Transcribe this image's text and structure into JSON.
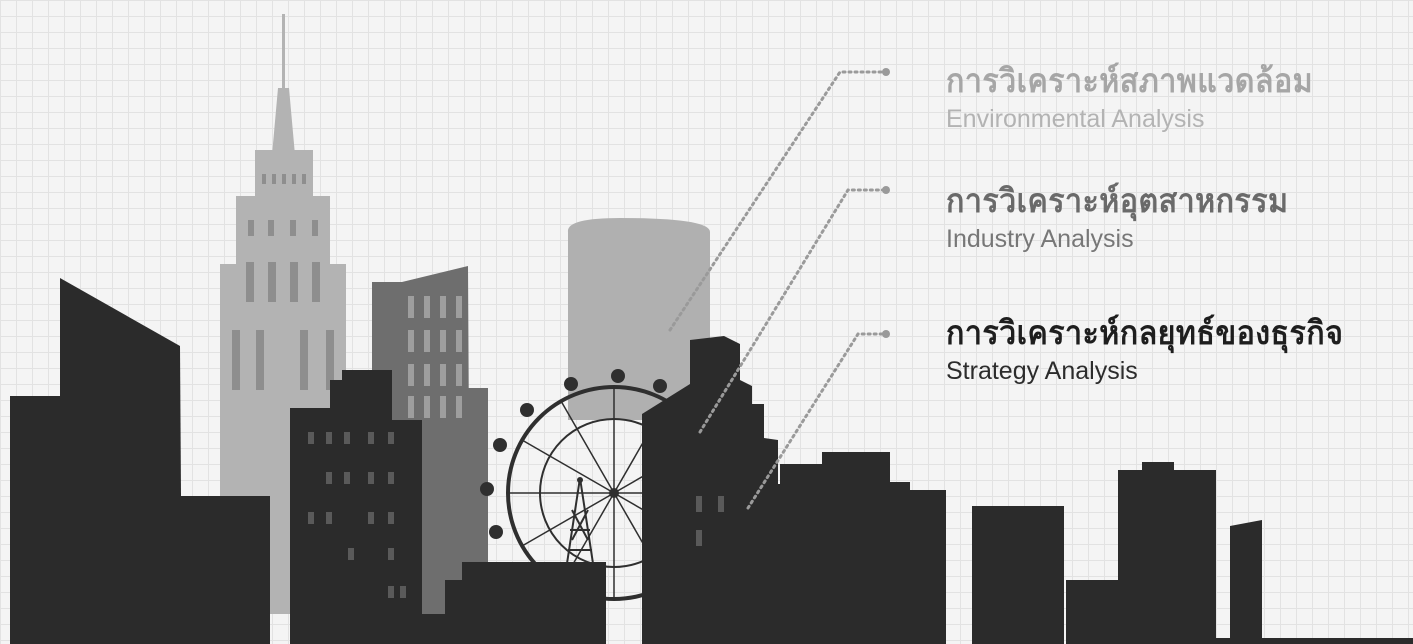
{
  "items": [
    {
      "thai": "การวิเคราะห์สภาพแวดล้อม",
      "english": "Environmental Analysis",
      "level": "light"
    },
    {
      "thai": "การวิเคราะห์อุตสาหกรรม",
      "english": "Industry Analysis",
      "level": "medium"
    },
    {
      "thai": "การวิเคราะห์กลยุทธ์ของธุรกิจ",
      "english": "Strategy Analysis",
      "level": "dark"
    }
  ],
  "colors": {
    "background": "#f4f4f4",
    "grid": "#e2e2e2",
    "tower_light": "#b0b0b0",
    "building_mid": "#6e6e6e",
    "building_dark": "#2b2b2b",
    "connector": "#9a9a9a"
  }
}
